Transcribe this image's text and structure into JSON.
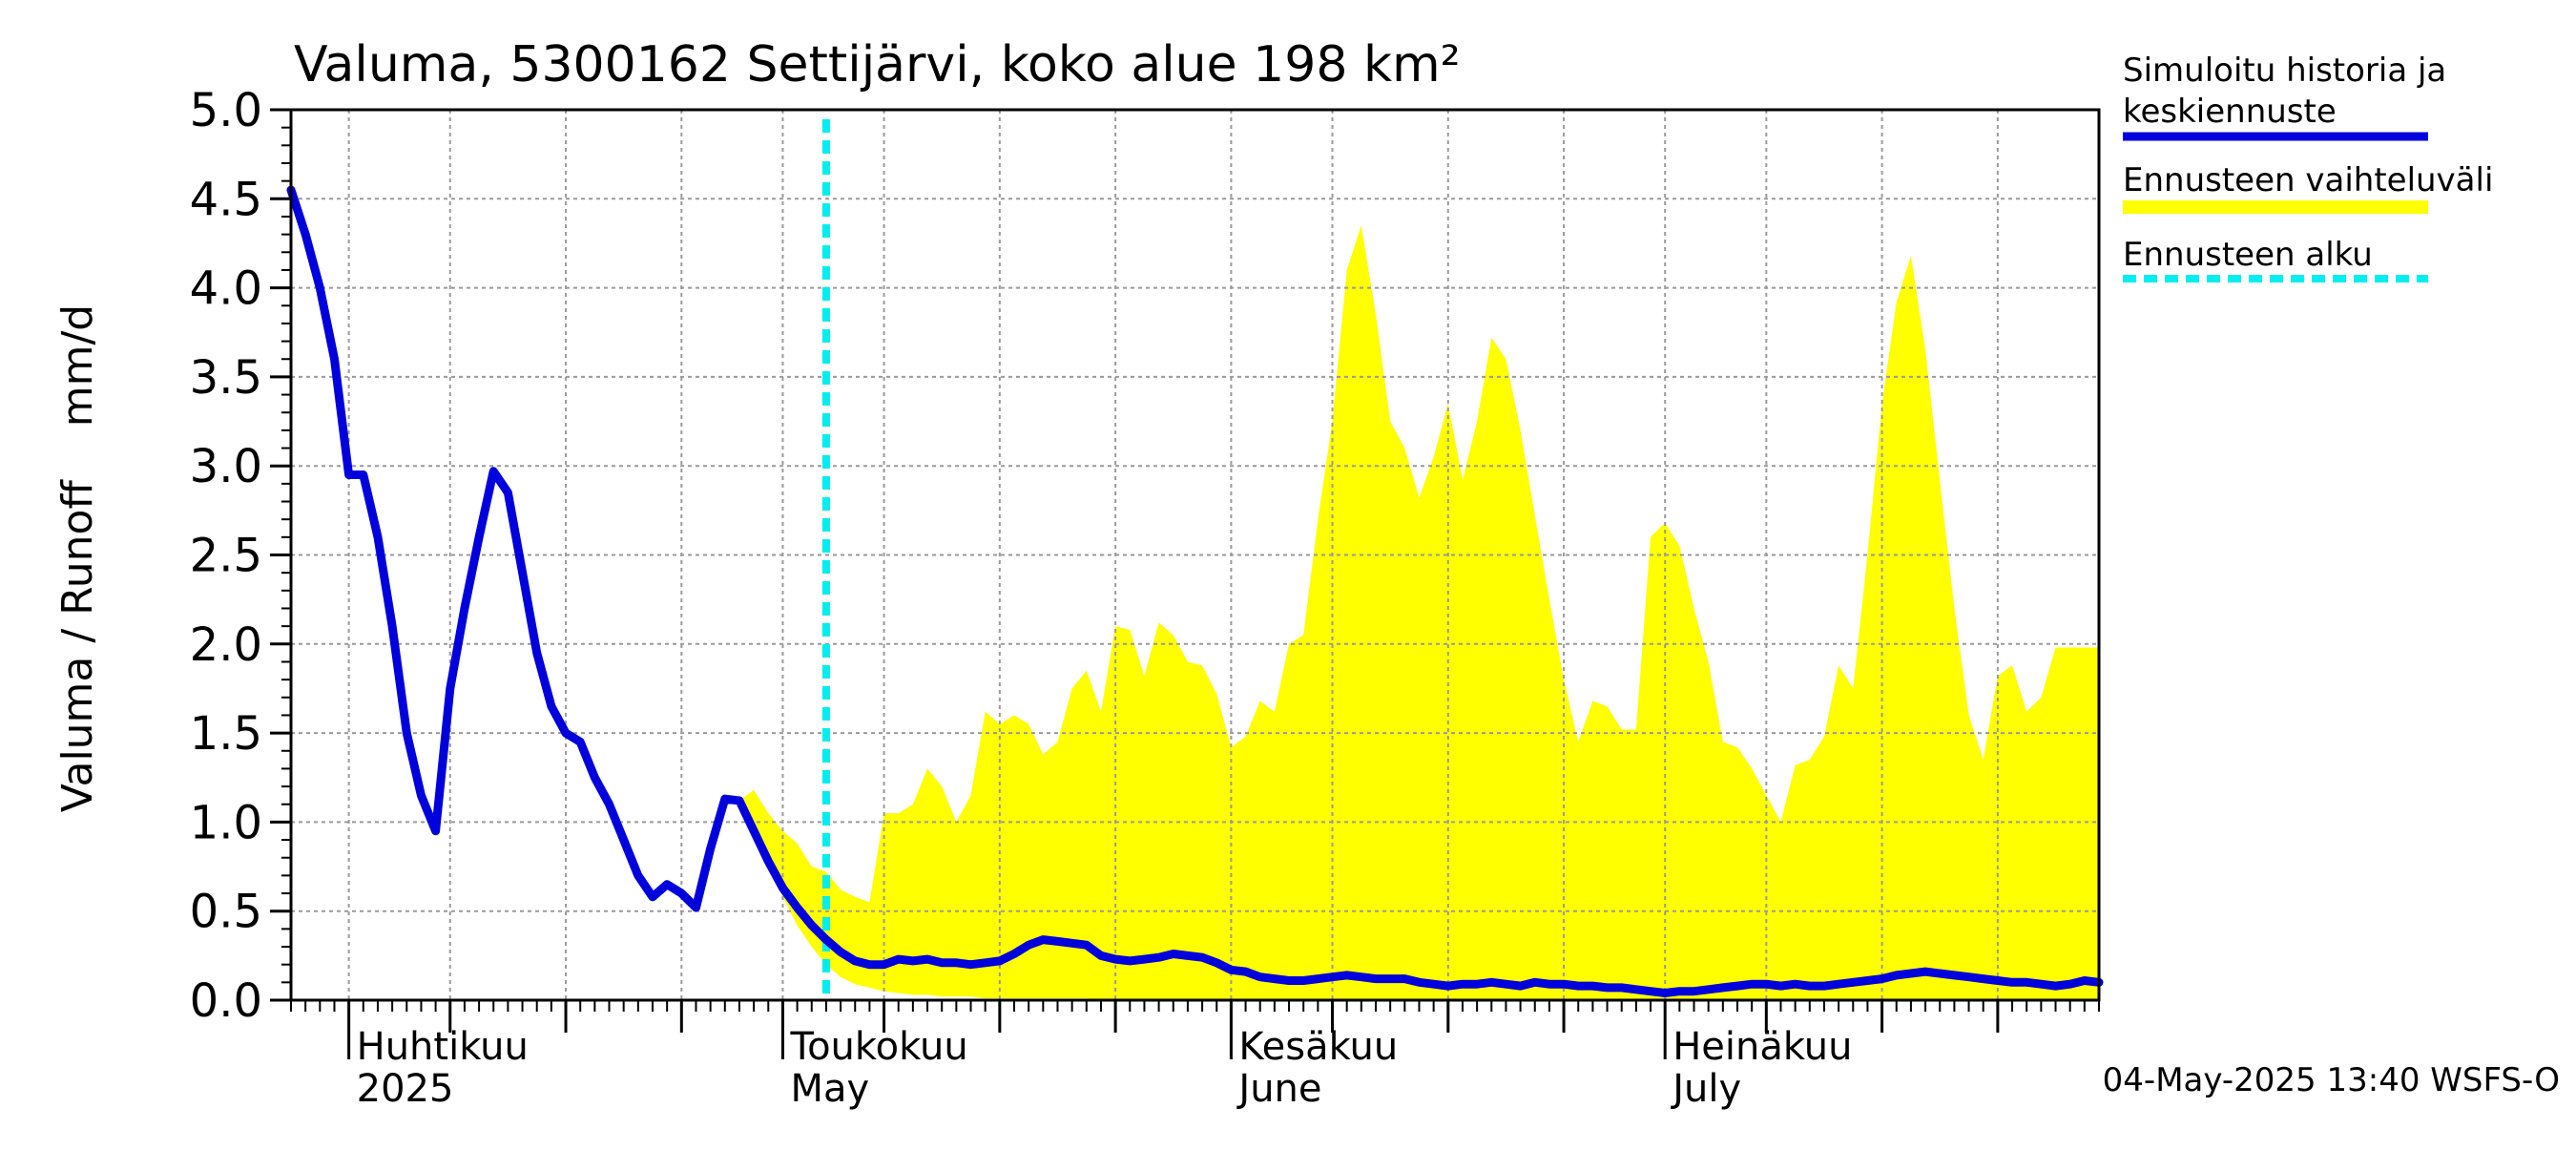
{
  "chart_data": {
    "type": "area",
    "title": "Valuma, 5300162 Settijärvi, koko alue 198 km²",
    "ylabel": "Valuma / Runoff    mm/d",
    "ylim": [
      0,
      5.0
    ],
    "yticks": [
      "0.0",
      "0.5",
      "1.0",
      "1.5",
      "2.0",
      "2.5",
      "3.0",
      "3.5",
      "4.0",
      "4.5",
      "5.0"
    ],
    "xlim": [
      "2025-03-28",
      "2025-07-31"
    ],
    "grid": true,
    "legend_position": "right",
    "month_labels": [
      {
        "date": "2025-04-01",
        "line1": "Huhtikuu",
        "line2": "2025"
      },
      {
        "date": "2025-05-01",
        "line1": "Toukokuu",
        "line2": "May"
      },
      {
        "date": "2025-06-01",
        "line1": "Kesäkuu",
        "line2": "June"
      },
      {
        "date": "2025-07-01",
        "line1": "Heinäkuu",
        "line2": "July"
      }
    ],
    "forecast_start": "2025-05-04",
    "timestamp": "04-May-2025 13:40 WSFS-O",
    "colors": {
      "history": "#0000dd",
      "band": "#ffff00",
      "forecast_start": "#00eeee",
      "grid": "#9a9a9a"
    },
    "series": [
      {
        "name": "Simuloitu historia ja keskiennuste",
        "role": "line",
        "points": [
          [
            "2025-03-28",
            4.55
          ],
          [
            "2025-03-29",
            4.3
          ],
          [
            "2025-03-30",
            4.0
          ],
          [
            "2025-03-31",
            3.6
          ],
          [
            "2025-04-01",
            2.95
          ],
          [
            "2025-04-02",
            2.95
          ],
          [
            "2025-04-03",
            2.6
          ],
          [
            "2025-04-04",
            2.1
          ],
          [
            "2025-04-05",
            1.5
          ],
          [
            "2025-04-06",
            1.15
          ],
          [
            "2025-04-07",
            0.95
          ],
          [
            "2025-04-08",
            1.75
          ],
          [
            "2025-04-09",
            2.2
          ],
          [
            "2025-04-10",
            2.6
          ],
          [
            "2025-04-11",
            2.97
          ],
          [
            "2025-04-12",
            2.85
          ],
          [
            "2025-04-13",
            2.4
          ],
          [
            "2025-04-14",
            1.95
          ],
          [
            "2025-04-15",
            1.65
          ],
          [
            "2025-04-16",
            1.5
          ],
          [
            "2025-04-17",
            1.45
          ],
          [
            "2025-04-18",
            1.25
          ],
          [
            "2025-04-19",
            1.1
          ],
          [
            "2025-04-20",
            0.9
          ],
          [
            "2025-04-21",
            0.7
          ],
          [
            "2025-04-22",
            0.58
          ],
          [
            "2025-04-23",
            0.65
          ],
          [
            "2025-04-24",
            0.6
          ],
          [
            "2025-04-25",
            0.52
          ],
          [
            "2025-04-26",
            0.85
          ],
          [
            "2025-04-27",
            1.13
          ],
          [
            "2025-04-28",
            1.12
          ],
          [
            "2025-04-29",
            0.95
          ],
          [
            "2025-04-30",
            0.78
          ],
          [
            "2025-05-01",
            0.63
          ],
          [
            "2025-05-02",
            0.52
          ],
          [
            "2025-05-03",
            0.42
          ],
          [
            "2025-05-04",
            0.34
          ],
          [
            "2025-05-05",
            0.27
          ],
          [
            "2025-05-06",
            0.22
          ],
          [
            "2025-05-07",
            0.2
          ],
          [
            "2025-05-08",
            0.2
          ],
          [
            "2025-05-09",
            0.23
          ],
          [
            "2025-05-10",
            0.22
          ],
          [
            "2025-05-11",
            0.23
          ],
          [
            "2025-05-12",
            0.21
          ],
          [
            "2025-05-13",
            0.21
          ],
          [
            "2025-05-14",
            0.2
          ],
          [
            "2025-05-15",
            0.21
          ],
          [
            "2025-05-16",
            0.22
          ],
          [
            "2025-05-17",
            0.26
          ],
          [
            "2025-05-18",
            0.31
          ],
          [
            "2025-05-19",
            0.34
          ],
          [
            "2025-05-20",
            0.33
          ],
          [
            "2025-05-21",
            0.32
          ],
          [
            "2025-05-22",
            0.31
          ],
          [
            "2025-05-23",
            0.25
          ],
          [
            "2025-05-24",
            0.23
          ],
          [
            "2025-05-25",
            0.22
          ],
          [
            "2025-05-26",
            0.23
          ],
          [
            "2025-05-27",
            0.24
          ],
          [
            "2025-05-28",
            0.26
          ],
          [
            "2025-05-29",
            0.25
          ],
          [
            "2025-05-30",
            0.24
          ],
          [
            "2025-05-31",
            0.21
          ],
          [
            "2025-06-01",
            0.17
          ],
          [
            "2025-06-02",
            0.16
          ],
          [
            "2025-06-03",
            0.13
          ],
          [
            "2025-06-04",
            0.12
          ],
          [
            "2025-06-05",
            0.11
          ],
          [
            "2025-06-06",
            0.11
          ],
          [
            "2025-06-07",
            0.12
          ],
          [
            "2025-06-08",
            0.13
          ],
          [
            "2025-06-09",
            0.14
          ],
          [
            "2025-06-10",
            0.13
          ],
          [
            "2025-06-11",
            0.12
          ],
          [
            "2025-06-12",
            0.12
          ],
          [
            "2025-06-13",
            0.12
          ],
          [
            "2025-06-14",
            0.1
          ],
          [
            "2025-06-15",
            0.09
          ],
          [
            "2025-06-16",
            0.08
          ],
          [
            "2025-06-17",
            0.09
          ],
          [
            "2025-06-18",
            0.09
          ],
          [
            "2025-06-19",
            0.1
          ],
          [
            "2025-06-20",
            0.09
          ],
          [
            "2025-06-21",
            0.08
          ],
          [
            "2025-06-22",
            0.1
          ],
          [
            "2025-06-23",
            0.09
          ],
          [
            "2025-06-24",
            0.09
          ],
          [
            "2025-06-25",
            0.08
          ],
          [
            "2025-06-26",
            0.08
          ],
          [
            "2025-06-27",
            0.07
          ],
          [
            "2025-06-28",
            0.07
          ],
          [
            "2025-06-29",
            0.06
          ],
          [
            "2025-06-30",
            0.05
          ],
          [
            "2025-07-01",
            0.04
          ],
          [
            "2025-07-02",
            0.05
          ],
          [
            "2025-07-03",
            0.05
          ],
          [
            "2025-07-04",
            0.06
          ],
          [
            "2025-07-05",
            0.07
          ],
          [
            "2025-07-06",
            0.08
          ],
          [
            "2025-07-07",
            0.09
          ],
          [
            "2025-07-08",
            0.09
          ],
          [
            "2025-07-09",
            0.08
          ],
          [
            "2025-07-10",
            0.09
          ],
          [
            "2025-07-11",
            0.08
          ],
          [
            "2025-07-12",
            0.08
          ],
          [
            "2025-07-13",
            0.09
          ],
          [
            "2025-07-14",
            0.1
          ],
          [
            "2025-07-15",
            0.11
          ],
          [
            "2025-07-16",
            0.12
          ],
          [
            "2025-07-17",
            0.14
          ],
          [
            "2025-07-18",
            0.15
          ],
          [
            "2025-07-19",
            0.16
          ],
          [
            "2025-07-20",
            0.15
          ],
          [
            "2025-07-21",
            0.14
          ],
          [
            "2025-07-22",
            0.13
          ],
          [
            "2025-07-23",
            0.12
          ],
          [
            "2025-07-24",
            0.11
          ],
          [
            "2025-07-25",
            0.1
          ],
          [
            "2025-07-26",
            0.1
          ],
          [
            "2025-07-27",
            0.09
          ],
          [
            "2025-07-28",
            0.08
          ],
          [
            "2025-07-29",
            0.09
          ],
          [
            "2025-07-30",
            0.11
          ],
          [
            "2025-07-31",
            0.1
          ]
        ]
      },
      {
        "name": "Ennusteen vaihteluväli",
        "role": "band",
        "upper": [
          [
            "2025-04-28",
            1.12
          ],
          [
            "2025-04-29",
            1.18
          ],
          [
            "2025-04-30",
            1.05
          ],
          [
            "2025-05-01",
            0.95
          ],
          [
            "2025-05-02",
            0.88
          ],
          [
            "2025-05-03",
            0.75
          ],
          [
            "2025-05-04",
            0.72
          ],
          [
            "2025-05-05",
            0.62
          ],
          [
            "2025-05-06",
            0.58
          ],
          [
            "2025-05-07",
            0.55
          ],
          [
            "2025-05-08",
            1.05
          ],
          [
            "2025-05-09",
            1.05
          ],
          [
            "2025-05-10",
            1.1
          ],
          [
            "2025-05-11",
            1.3
          ],
          [
            "2025-05-12",
            1.2
          ],
          [
            "2025-05-13",
            1.0
          ],
          [
            "2025-05-14",
            1.15
          ],
          [
            "2025-05-15",
            1.62
          ],
          [
            "2025-05-16",
            1.55
          ],
          [
            "2025-05-17",
            1.6
          ],
          [
            "2025-05-18",
            1.55
          ],
          [
            "2025-05-19",
            1.38
          ],
          [
            "2025-05-20",
            1.45
          ],
          [
            "2025-05-21",
            1.75
          ],
          [
            "2025-05-22",
            1.85
          ],
          [
            "2025-05-23",
            1.62
          ],
          [
            "2025-05-24",
            2.1
          ],
          [
            "2025-05-25",
            2.08
          ],
          [
            "2025-05-26",
            1.82
          ],
          [
            "2025-05-27",
            2.12
          ],
          [
            "2025-05-28",
            2.05
          ],
          [
            "2025-05-29",
            1.9
          ],
          [
            "2025-05-30",
            1.88
          ],
          [
            "2025-05-31",
            1.72
          ],
          [
            "2025-06-01",
            1.42
          ],
          [
            "2025-06-02",
            1.48
          ],
          [
            "2025-06-03",
            1.68
          ],
          [
            "2025-06-04",
            1.62
          ],
          [
            "2025-06-05",
            2.0
          ],
          [
            "2025-06-06",
            2.05
          ],
          [
            "2025-06-07",
            2.7
          ],
          [
            "2025-06-08",
            3.25
          ],
          [
            "2025-06-09",
            4.1
          ],
          [
            "2025-06-10",
            4.35
          ],
          [
            "2025-06-11",
            3.85
          ],
          [
            "2025-06-12",
            3.25
          ],
          [
            "2025-06-13",
            3.1
          ],
          [
            "2025-06-14",
            2.82
          ],
          [
            "2025-06-15",
            3.05
          ],
          [
            "2025-06-16",
            3.35
          ],
          [
            "2025-06-17",
            2.92
          ],
          [
            "2025-06-18",
            3.25
          ],
          [
            "2025-06-19",
            3.72
          ],
          [
            "2025-06-20",
            3.6
          ],
          [
            "2025-06-21",
            3.2
          ],
          [
            "2025-06-22",
            2.72
          ],
          [
            "2025-06-23",
            2.25
          ],
          [
            "2025-06-24",
            1.8
          ],
          [
            "2025-06-25",
            1.45
          ],
          [
            "2025-06-26",
            1.68
          ],
          [
            "2025-06-27",
            1.65
          ],
          [
            "2025-06-28",
            1.52
          ],
          [
            "2025-06-29",
            1.52
          ],
          [
            "2025-06-30",
            2.6
          ],
          [
            "2025-07-01",
            2.68
          ],
          [
            "2025-07-02",
            2.55
          ],
          [
            "2025-07-03",
            2.2
          ],
          [
            "2025-07-04",
            1.9
          ],
          [
            "2025-07-05",
            1.45
          ],
          [
            "2025-07-06",
            1.42
          ],
          [
            "2025-07-07",
            1.3
          ],
          [
            "2025-07-08",
            1.15
          ],
          [
            "2025-07-09",
            1.0
          ],
          [
            "2025-07-10",
            1.32
          ],
          [
            "2025-07-11",
            1.35
          ],
          [
            "2025-07-12",
            1.48
          ],
          [
            "2025-07-13",
            1.88
          ],
          [
            "2025-07-14",
            1.75
          ],
          [
            "2025-07-15",
            2.5
          ],
          [
            "2025-07-16",
            3.35
          ],
          [
            "2025-07-17",
            3.92
          ],
          [
            "2025-07-18",
            4.18
          ],
          [
            "2025-07-19",
            3.65
          ],
          [
            "2025-07-20",
            2.92
          ],
          [
            "2025-07-21",
            2.2
          ],
          [
            "2025-07-22",
            1.6
          ],
          [
            "2025-07-23",
            1.35
          ],
          [
            "2025-07-24",
            1.82
          ],
          [
            "2025-07-25",
            1.88
          ],
          [
            "2025-07-26",
            1.62
          ],
          [
            "2025-07-27",
            1.7
          ],
          [
            "2025-07-28",
            1.98
          ]
        ],
        "lower": [
          [
            "2025-04-28",
            1.12
          ],
          [
            "2025-04-29",
            0.95
          ],
          [
            "2025-04-30",
            0.75
          ],
          [
            "2025-05-01",
            0.58
          ],
          [
            "2025-05-02",
            0.42
          ],
          [
            "2025-05-03",
            0.3
          ],
          [
            "2025-05-04",
            0.2
          ],
          [
            "2025-05-05",
            0.13
          ],
          [
            "2025-05-06",
            0.09
          ],
          [
            "2025-05-07",
            0.07
          ],
          [
            "2025-05-08",
            0.05
          ],
          [
            "2025-05-09",
            0.04
          ],
          [
            "2025-05-10",
            0.03
          ],
          [
            "2025-05-11",
            0.03
          ],
          [
            "2025-05-12",
            0.02
          ],
          [
            "2025-05-13",
            0.02
          ],
          [
            "2025-05-14",
            0.02
          ],
          [
            "2025-05-15",
            0.01
          ],
          [
            "2025-05-16",
            0.01
          ],
          [
            "2025-05-17",
            0.01
          ],
          [
            "2025-05-18",
            0.01
          ],
          [
            "2025-05-19",
            0.01
          ],
          [
            "2025-05-20",
            0.01
          ],
          [
            "2025-05-21",
            0.01
          ],
          [
            "2025-05-22",
            0.01
          ],
          [
            "2025-05-23",
            0.0
          ],
          [
            "2025-07-28",
            0.0
          ]
        ]
      },
      {
        "name": "Ennusteen alku",
        "role": "vline",
        "x": "2025-05-04"
      }
    ]
  }
}
